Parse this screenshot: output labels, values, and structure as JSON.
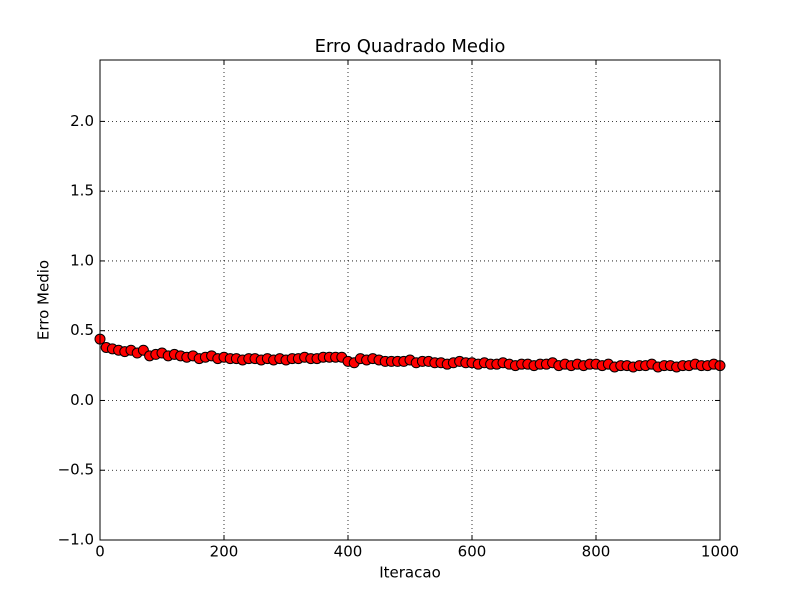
{
  "chart_data": {
    "type": "line",
    "title": "Erro Quadrado Medio",
    "x_label": "Iteracao",
    "y_label": "Erro Medio",
    "x": [
      0,
      10,
      20,
      30,
      40,
      50,
      60,
      70,
      80,
      90,
      100,
      110,
      120,
      130,
      140,
      150,
      160,
      170,
      180,
      190,
      200,
      210,
      220,
      230,
      240,
      250,
      260,
      270,
      280,
      290,
      300,
      310,
      320,
      330,
      340,
      350,
      360,
      370,
      380,
      390,
      400,
      410,
      420,
      430,
      440,
      450,
      460,
      470,
      480,
      490,
      500,
      510,
      520,
      530,
      540,
      550,
      560,
      570,
      580,
      590,
      600,
      610,
      620,
      630,
      640,
      650,
      660,
      670,
      680,
      690,
      700,
      710,
      720,
      730,
      740,
      750,
      760,
      770,
      780,
      790,
      800,
      810,
      820,
      830,
      840,
      850,
      860,
      870,
      880,
      890,
      900,
      910,
      920,
      930,
      940,
      950,
      960,
      970,
      980,
      990,
      1000
    ],
    "values": [
      0.44,
      0.38,
      0.37,
      0.36,
      0.35,
      0.36,
      0.34,
      0.36,
      0.32,
      0.33,
      0.34,
      0.32,
      0.33,
      0.32,
      0.31,
      0.32,
      0.3,
      0.31,
      0.32,
      0.3,
      0.31,
      0.3,
      0.3,
      0.29,
      0.3,
      0.3,
      0.29,
      0.3,
      0.29,
      0.3,
      0.29,
      0.3,
      0.3,
      0.31,
      0.3,
      0.3,
      0.31,
      0.31,
      0.31,
      0.31,
      0.28,
      0.27,
      0.3,
      0.29,
      0.3,
      0.29,
      0.28,
      0.28,
      0.28,
      0.28,
      0.29,
      0.27,
      0.28,
      0.28,
      0.27,
      0.27,
      0.26,
      0.27,
      0.28,
      0.27,
      0.27,
      0.26,
      0.27,
      0.26,
      0.26,
      0.27,
      0.26,
      0.25,
      0.26,
      0.26,
      0.25,
      0.26,
      0.26,
      0.27,
      0.25,
      0.26,
      0.25,
      0.26,
      0.25,
      0.26,
      0.26,
      0.25,
      0.26,
      0.24,
      0.25,
      0.25,
      0.24,
      0.25,
      0.25,
      0.26,
      0.24,
      0.25,
      0.25,
      0.24,
      0.25,
      0.25,
      0.26,
      0.25,
      0.25,
      0.26,
      0.25
    ],
    "color": "#ff0000",
    "marker_edge_color": "#000000",
    "xlim": [
      0,
      1000
    ],
    "xticks": [
      0,
      200,
      400,
      600,
      800,
      1000
    ],
    "ylim": [
      -1.0,
      2.44
    ],
    "yticks": [
      {
        "value": -1.0,
        "label": "−1.0"
      },
      {
        "value": -0.5,
        "label": "−0.5"
      },
      {
        "value": 0.0,
        "label": "0.0"
      },
      {
        "value": 0.5,
        "label": "0.5"
      },
      {
        "value": 1.0,
        "label": "1.0"
      },
      {
        "value": 1.5,
        "label": "1.5"
      },
      {
        "value": 2.0,
        "label": "2.0"
      }
    ],
    "grid": true
  }
}
